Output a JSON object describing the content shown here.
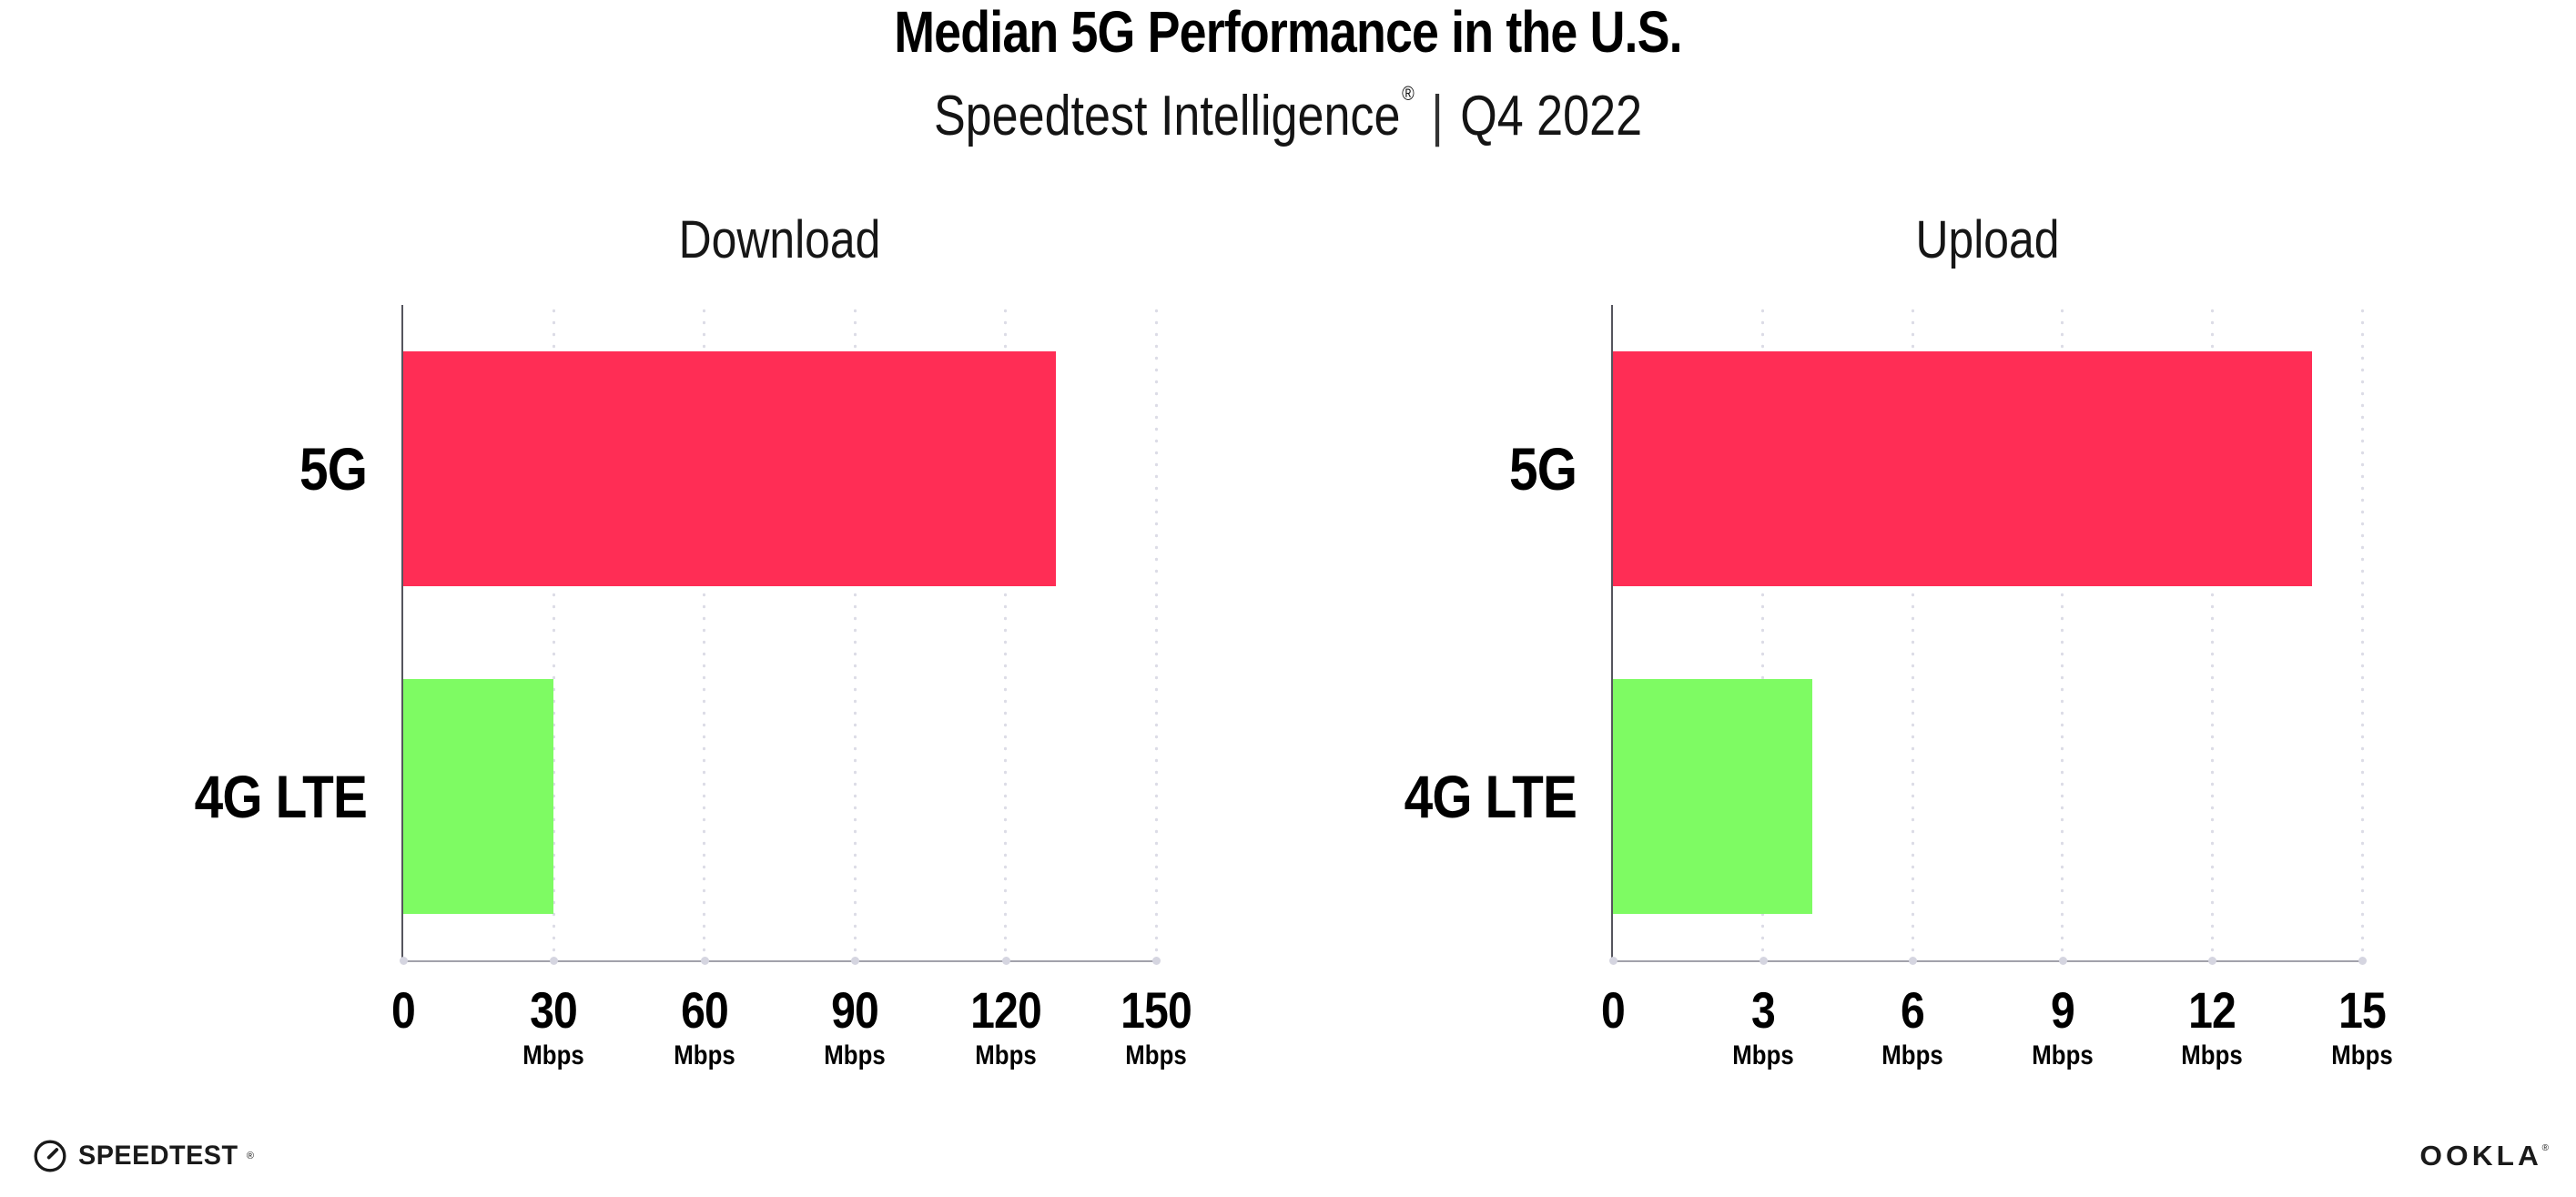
{
  "header": {
    "title": "Median 5G Performance in the U.S.",
    "subtitle_brand": "Speedtest Intelligence",
    "subtitle_reg": "®",
    "subtitle_sep": "|",
    "subtitle_period": "Q4 2022"
  },
  "footer": {
    "speedtest_label": "SPEEDTEST",
    "speedtest_mark": "®",
    "speedtest_icon": "speedometer-gauge-icon",
    "ookla_label": "OOKLA",
    "ookla_mark": "®"
  },
  "colors": {
    "bar_5g": "#FF2D55",
    "bar_4g_lte": "#7EFB63",
    "grid_dot": "#DCDCE6",
    "axis_y": "#55555D",
    "axis_x": "#A2A2AB",
    "text": "#0A0A0A"
  },
  "chart_data": [
    {
      "type": "bar",
      "orientation": "horizontal",
      "title": "Download",
      "categories": [
        "5G",
        "4G LTE"
      ],
      "values": [
        130,
        30
      ],
      "unit": "Mbps",
      "xlim": [
        0,
        150
      ],
      "xticks": [
        0,
        30,
        60,
        90,
        120,
        150
      ],
      "grid": "dotted-vertical",
      "legend": "none",
      "bar_colors": [
        "#FF2D55",
        "#7EFB63"
      ]
    },
    {
      "type": "bar",
      "orientation": "horizontal",
      "title": "Upload",
      "categories": [
        "5G",
        "4G LTE"
      ],
      "values": [
        14,
        4
      ],
      "unit": "Mbps",
      "xlim": [
        0,
        15
      ],
      "xticks": [
        0,
        3,
        6,
        9,
        12,
        15
      ],
      "grid": "dotted-vertical",
      "legend": "none",
      "bar_colors": [
        "#FF2D55",
        "#7EFB63"
      ]
    }
  ]
}
